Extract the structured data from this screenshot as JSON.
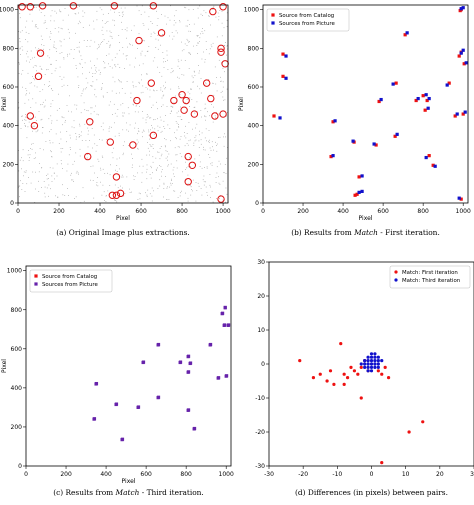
{
  "colors": {
    "catalog": "#ee1111",
    "picture": "#1111cc",
    "overlap": "#6622aa",
    "ring": "#dd1111",
    "speckle": "#a8a8a8"
  },
  "chart_data": [
    {
      "id": "a",
      "type": "scatter",
      "caption": "(a) Original Image plus extractions.",
      "xlabel": "Pixel",
      "ylabel": "Pixel",
      "xlim": [
        0,
        1024
      ],
      "ylim": [
        0,
        1024
      ],
      "xticks": [
        0,
        200,
        400,
        600,
        800,
        1000
      ],
      "yticks": [
        0,
        200,
        400,
        600,
        800,
        1000
      ],
      "legend": null,
      "series": [
        {
          "marker": "ring",
          "points": [
            [
              20,
              1015
            ],
            [
              60,
              1015
            ],
            [
              120,
              1020
            ],
            [
              270,
              1020
            ],
            [
              470,
              1020
            ],
            [
              660,
              1020
            ],
            [
              950,
              990
            ],
            [
              1000,
              1015
            ],
            [
              700,
              880
            ],
            [
              590,
              840
            ],
            [
              110,
              775
            ],
            [
              990,
              780
            ],
            [
              1010,
              720
            ],
            [
              990,
              800
            ],
            [
              100,
              655
            ],
            [
              650,
              620
            ],
            [
              920,
              620
            ],
            [
              940,
              540
            ],
            [
              760,
              530
            ],
            [
              800,
              560
            ],
            [
              820,
              530
            ],
            [
              580,
              530
            ],
            [
              60,
              450
            ],
            [
              80,
              400
            ],
            [
              350,
              420
            ],
            [
              960,
              450
            ],
            [
              1000,
              460
            ],
            [
              860,
              460
            ],
            [
              660,
              350
            ],
            [
              810,
              480
            ],
            [
              450,
              315
            ],
            [
              560,
              300
            ],
            [
              340,
              240
            ],
            [
              830,
              240
            ],
            [
              850,
              195
            ],
            [
              480,
              135
            ],
            [
              830,
              110
            ],
            [
              460,
              40
            ],
            [
              480,
              40
            ],
            [
              500,
              50
            ],
            [
              990,
              20
            ]
          ]
        }
      ]
    },
    {
      "id": "b",
      "type": "scatter",
      "caption": "(b) Results from Match - First iteration.",
      "caption_parts": [
        "(b) Results from ",
        "Match",
        " - First iteration."
      ],
      "xlabel": "Pixel",
      "ylabel": "Pixel",
      "xlim": [
        0,
        1024
      ],
      "ylim": [
        0,
        1024
      ],
      "xticks": [
        0,
        200,
        400,
        600,
        800,
        1000
      ],
      "yticks": [
        0,
        200,
        400,
        600,
        800,
        1000
      ],
      "legend": "top-left",
      "series": [
        {
          "name": "Source from Catalog",
          "marker": "square",
          "points": [
            [
              990,
              1000
            ],
            [
              985,
              995
            ],
            [
              100,
              770
            ],
            [
              980,
              760
            ],
            [
              710,
              870
            ],
            [
              990,
              780
            ],
            [
              1005,
              720
            ],
            [
              100,
              655
            ],
            [
              55,
              450
            ],
            [
              960,
              450
            ],
            [
              1000,
              460
            ],
            [
              665,
              620
            ],
            [
              930,
              620
            ],
            [
              580,
              525
            ],
            [
              765,
              530
            ],
            [
              800,
              555
            ],
            [
              820,
              530
            ],
            [
              350,
              420
            ],
            [
              810,
              480
            ],
            [
              660,
              345
            ],
            [
              455,
              315
            ],
            [
              565,
              300
            ],
            [
              340,
              240
            ],
            [
              830,
              245
            ],
            [
              480,
              135
            ],
            [
              460,
              40
            ],
            [
              470,
              45
            ],
            [
              990,
              20
            ],
            [
              850,
              195
            ]
          ]
        },
        {
          "name": "Sources from Picture",
          "marker": "square",
          "points": [
            [
              1000,
              1010
            ],
            [
              990,
              1005
            ],
            [
              115,
              760
            ],
            [
              990,
              775
            ],
            [
              720,
              880
            ],
            [
              1000,
              790
            ],
            [
              1015,
              725
            ],
            [
              115,
              645
            ],
            [
              85,
              440
            ],
            [
              970,
              460
            ],
            [
              1010,
              470
            ],
            [
              650,
              615
            ],
            [
              920,
              610
            ],
            [
              590,
              535
            ],
            [
              775,
              540
            ],
            [
              815,
              560
            ],
            [
              830,
              540
            ],
            [
              360,
              425
            ],
            [
              825,
              490
            ],
            [
              670,
              355
            ],
            [
              450,
              320
            ],
            [
              555,
              305
            ],
            [
              350,
              245
            ],
            [
              815,
              235
            ],
            [
              495,
              140
            ],
            [
              480,
              55
            ],
            [
              495,
              60
            ],
            [
              980,
              25
            ],
            [
              860,
              190
            ]
          ]
        }
      ]
    },
    {
      "id": "c",
      "type": "scatter",
      "caption": "(c) Results from Match - Third iteration.",
      "caption_parts": [
        "(c) Results from ",
        "Match",
        " - Third iteration."
      ],
      "xlabel": "Pixel",
      "ylabel": "Pixel",
      "xlim": [
        0,
        1024
      ],
      "ylim": [
        0,
        1024
      ],
      "xticks": [
        0,
        200,
        400,
        600,
        800,
        1000
      ],
      "yticks": [
        0,
        200,
        400,
        600,
        800,
        1000
      ],
      "legend": "top-left",
      "series": [
        {
          "name": "Source from Catalog",
          "marker": "square",
          "points": [
            [
              995,
              810
            ],
            [
              980,
              780
            ],
            [
              1010,
              720
            ],
            [
              660,
              620
            ],
            [
              920,
              620
            ],
            [
              585,
              530
            ],
            [
              770,
              530
            ],
            [
              810,
              560
            ],
            [
              820,
              525
            ],
            [
              810,
              480
            ],
            [
              960,
              450
            ],
            [
              1000,
              460
            ],
            [
              350,
              420
            ],
            [
              660,
              350
            ],
            [
              450,
              315
            ],
            [
              560,
              300
            ],
            [
              340,
              240
            ],
            [
              810,
              285
            ],
            [
              480,
              135
            ],
            [
              840,
              190
            ],
            [
              990,
              720
            ]
          ]
        },
        {
          "name": "Sources from Picture",
          "marker": "square",
          "points": [
            [
              995,
              812
            ],
            [
              982,
              782
            ],
            [
              1012,
              722
            ],
            [
              662,
              622
            ],
            [
              922,
              622
            ],
            [
              587,
              532
            ],
            [
              772,
              532
            ],
            [
              812,
              562
            ],
            [
              822,
              527
            ],
            [
              812,
              482
            ],
            [
              962,
              452
            ],
            [
              1002,
              462
            ],
            [
              352,
              422
            ],
            [
              662,
              352
            ],
            [
              452,
              317
            ],
            [
              562,
              302
            ],
            [
              342,
              242
            ],
            [
              812,
              287
            ],
            [
              482,
              137
            ],
            [
              842,
              192
            ],
            [
              992,
              722
            ]
          ]
        }
      ]
    },
    {
      "id": "d",
      "type": "scatter",
      "caption": "(d) Differences (in pixels) between pairs.",
      "xlabel": "",
      "ylabel": "",
      "xlim": [
        -30,
        30
      ],
      "ylim": [
        -30,
        30
      ],
      "xticks": [
        -30,
        -20,
        -10,
        0,
        10,
        20,
        30
      ],
      "yticks": [
        -30,
        -20,
        -10,
        0,
        10,
        20,
        30
      ],
      "legend": "top-right",
      "series": [
        {
          "name": "Match: First iteration",
          "marker": "dot",
          "points": [
            [
              -21,
              1
            ],
            [
              -17,
              -4
            ],
            [
              -15,
              -3
            ],
            [
              -13,
              -5
            ],
            [
              -12,
              -2
            ],
            [
              -11,
              -6
            ],
            [
              -9,
              6
            ],
            [
              -8,
              -3
            ],
            [
              -7,
              -4
            ],
            [
              -6,
              -1
            ],
            [
              -5,
              -2
            ],
            [
              -4,
              -3
            ],
            [
              -3,
              -1
            ],
            [
              -2,
              1
            ],
            [
              -1,
              -2
            ],
            [
              -3,
              -10
            ],
            [
              2,
              -2
            ],
            [
              3,
              -3
            ],
            [
              4,
              -1
            ],
            [
              5,
              -4
            ],
            [
              11,
              -20
            ],
            [
              15,
              -17
            ],
            [
              3,
              -29
            ],
            [
              -8,
              -6
            ]
          ]
        },
        {
          "name": "Match: Third iteration",
          "marker": "dot",
          "points": [
            [
              -1,
              0
            ],
            [
              0,
              0
            ],
            [
              1,
              0
            ],
            [
              0,
              1
            ],
            [
              0,
              -1
            ],
            [
              1,
              1
            ],
            [
              -1,
              1
            ],
            [
              1,
              -1
            ],
            [
              -1,
              -1
            ],
            [
              2,
              0
            ],
            [
              -2,
              0
            ],
            [
              0,
              2
            ],
            [
              0,
              -2
            ],
            [
              2,
              1
            ],
            [
              -2,
              1
            ],
            [
              1,
              2
            ],
            [
              -1,
              2
            ],
            [
              2,
              2
            ],
            [
              -2,
              -1
            ],
            [
              1,
              3
            ],
            [
              3,
              1
            ],
            [
              0,
              3
            ],
            [
              -1,
              -2
            ],
            [
              2,
              -1
            ],
            [
              -3,
              0
            ]
          ]
        }
      ]
    }
  ]
}
